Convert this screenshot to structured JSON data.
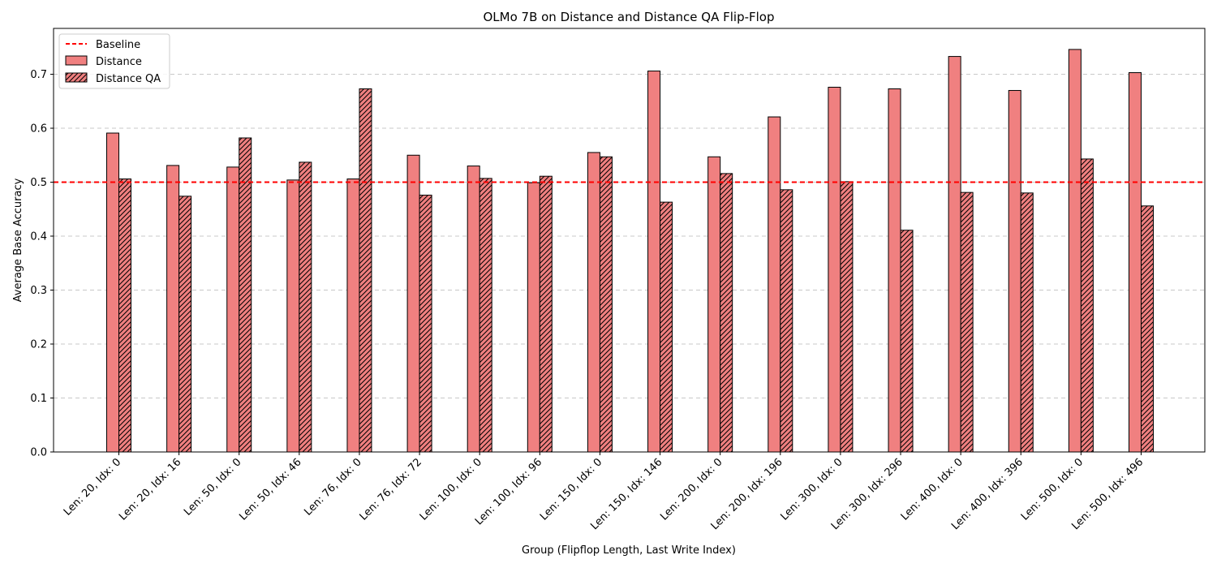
{
  "chart_data": {
    "type": "bar",
    "title": "OLMo 7B on Distance and Distance QA Flip-Flop",
    "xlabel": "Group (Flipflop Length, Last Write Index)",
    "ylabel": "Average Base Accuracy",
    "ylim": [
      0,
      0.785
    ],
    "yticks": [
      0.0,
      0.1,
      0.2,
      0.3,
      0.4,
      0.5,
      0.6,
      0.7
    ],
    "ytick_labels": [
      "0.0",
      "0.1",
      "0.2",
      "0.3",
      "0.4",
      "0.5",
      "0.6",
      "0.7"
    ],
    "grid": "y-dashed",
    "legend_position": "top-left",
    "categories": [
      "Len: 20, Idx: 0",
      "Len: 20, Idx: 16",
      "Len: 50, Idx: 0",
      "Len: 50, Idx: 46",
      "Len: 76, Idx: 0",
      "Len: 76, Idx: 72",
      "Len: 100, Idx: 0",
      "Len: 100, Idx: 96",
      "Len: 150, Idx: 0",
      "Len: 150, Idx: 146",
      "Len: 200, Idx: 0",
      "Len: 200, Idx: 196",
      "Len: 300, Idx: 0",
      "Len: 300, Idx: 296",
      "Len: 400, Idx: 0",
      "Len: 400, Idx: 396",
      "Len: 500, Idx: 0",
      "Len: 500, Idx: 496"
    ],
    "series": [
      {
        "name": "Distance",
        "color": "#f08080",
        "pattern": "solid",
        "values": [
          0.591,
          0.531,
          0.528,
          0.504,
          0.506,
          0.55,
          0.53,
          0.499,
          0.555,
          0.706,
          0.547,
          0.621,
          0.676,
          0.673,
          0.733,
          0.67,
          0.746,
          0.703
        ]
      },
      {
        "name": "Distance QA",
        "color": "#f08080",
        "pattern": "hatched",
        "values": [
          0.506,
          0.474,
          0.582,
          0.537,
          0.673,
          0.476,
          0.507,
          0.511,
          0.547,
          0.463,
          0.516,
          0.486,
          0.501,
          0.411,
          0.481,
          0.48,
          0.543,
          0.456
        ]
      }
    ],
    "baseline": {
      "name": "Baseline",
      "value": 0.5,
      "color": "#ff0000",
      "style": "dashed"
    }
  }
}
